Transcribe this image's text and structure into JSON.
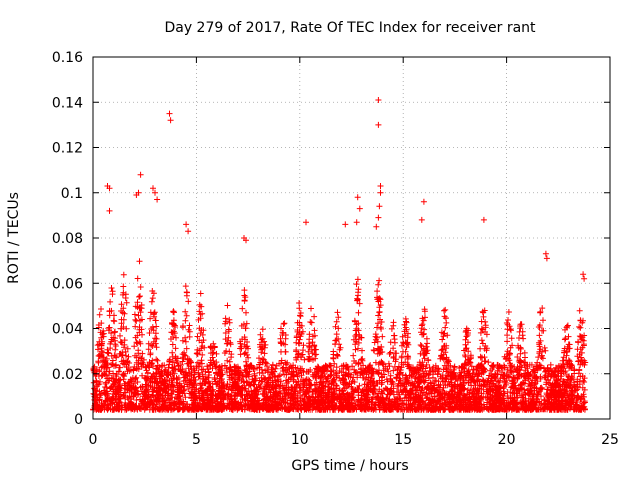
{
  "chart_data": {
    "type": "scatter",
    "title": "Day 279 of 2017, Rate Of TEC Index for receiver rant",
    "xlabel": "GPS time / hours",
    "ylabel": "ROTI / TECUs",
    "xlim": [
      0,
      25
    ],
    "ylim": [
      0,
      0.16
    ],
    "xticks": [
      0,
      5,
      10,
      15,
      20,
      25
    ],
    "xtick_labels": [
      "0",
      "5",
      "10",
      "15",
      "20",
      "25"
    ],
    "yticks": [
      0,
      0.02,
      0.04,
      0.06,
      0.08,
      0.1,
      0.12,
      0.14,
      0.16
    ],
    "ytick_labels": [
      "0",
      "0.02",
      "0.04",
      "0.06",
      "0.08",
      "0.1",
      "0.12",
      "0.14",
      "0.16"
    ],
    "grid": true,
    "marker": "plus",
    "color": "#ff0000",
    "data_x_range": [
      0,
      23.8
    ],
    "outliers": [
      {
        "x": 0.7,
        "y": 0.103
      },
      {
        "x": 0.8,
        "y": 0.102
      },
      {
        "x": 0.8,
        "y": 0.092
      },
      {
        "x": 2.3,
        "y": 0.108
      },
      {
        "x": 2.2,
        "y": 0.1
      },
      {
        "x": 2.1,
        "y": 0.099
      },
      {
        "x": 2.9,
        "y": 0.102
      },
      {
        "x": 3.0,
        "y": 0.1
      },
      {
        "x": 3.1,
        "y": 0.097
      },
      {
        "x": 3.7,
        "y": 0.135
      },
      {
        "x": 3.75,
        "y": 0.132
      },
      {
        "x": 4.5,
        "y": 0.086
      },
      {
        "x": 4.6,
        "y": 0.083
      },
      {
        "x": 7.3,
        "y": 0.08
      },
      {
        "x": 7.4,
        "y": 0.079
      },
      {
        "x": 10.3,
        "y": 0.087
      },
      {
        "x": 12.2,
        "y": 0.086
      },
      {
        "x": 12.8,
        "y": 0.098
      },
      {
        "x": 12.9,
        "y": 0.093
      },
      {
        "x": 12.75,
        "y": 0.087
      },
      {
        "x": 13.8,
        "y": 0.141
      },
      {
        "x": 13.8,
        "y": 0.13
      },
      {
        "x": 13.9,
        "y": 0.103
      },
      {
        "x": 13.9,
        "y": 0.1
      },
      {
        "x": 13.85,
        "y": 0.094
      },
      {
        "x": 13.8,
        "y": 0.089
      },
      {
        "x": 13.7,
        "y": 0.085
      },
      {
        "x": 16.0,
        "y": 0.096
      },
      {
        "x": 15.9,
        "y": 0.088
      },
      {
        "x": 18.9,
        "y": 0.088
      },
      {
        "x": 21.9,
        "y": 0.073
      },
      {
        "x": 21.95,
        "y": 0.071
      },
      {
        "x": 23.7,
        "y": 0.064
      },
      {
        "x": 23.75,
        "y": 0.062
      }
    ],
    "bursts": [
      {
        "x": 0.4,
        "amp": 0.048
      },
      {
        "x": 0.9,
        "amp": 0.055
      },
      {
        "x": 1.5,
        "amp": 0.062
      },
      {
        "x": 2.2,
        "amp": 0.07
      },
      {
        "x": 2.9,
        "amp": 0.06
      },
      {
        "x": 3.9,
        "amp": 0.045
      },
      {
        "x": 4.5,
        "amp": 0.058
      },
      {
        "x": 5.2,
        "amp": 0.055
      },
      {
        "x": 5.8,
        "amp": 0.04
      },
      {
        "x": 6.5,
        "amp": 0.048
      },
      {
        "x": 7.3,
        "amp": 0.055
      },
      {
        "x": 8.2,
        "amp": 0.04
      },
      {
        "x": 9.2,
        "amp": 0.045
      },
      {
        "x": 10.0,
        "amp": 0.05
      },
      {
        "x": 10.6,
        "amp": 0.048
      },
      {
        "x": 11.8,
        "amp": 0.045
      },
      {
        "x": 12.8,
        "amp": 0.06
      },
      {
        "x": 13.8,
        "amp": 0.06
      },
      {
        "x": 14.5,
        "amp": 0.04
      },
      {
        "x": 15.1,
        "amp": 0.045
      },
      {
        "x": 16.0,
        "amp": 0.05
      },
      {
        "x": 17.0,
        "amp": 0.045
      },
      {
        "x": 18.1,
        "amp": 0.04
      },
      {
        "x": 18.9,
        "amp": 0.048
      },
      {
        "x": 20.1,
        "amp": 0.045
      },
      {
        "x": 20.7,
        "amp": 0.042
      },
      {
        "x": 21.7,
        "amp": 0.05
      },
      {
        "x": 22.9,
        "amp": 0.042
      },
      {
        "x": 23.6,
        "amp": 0.048
      }
    ]
  }
}
